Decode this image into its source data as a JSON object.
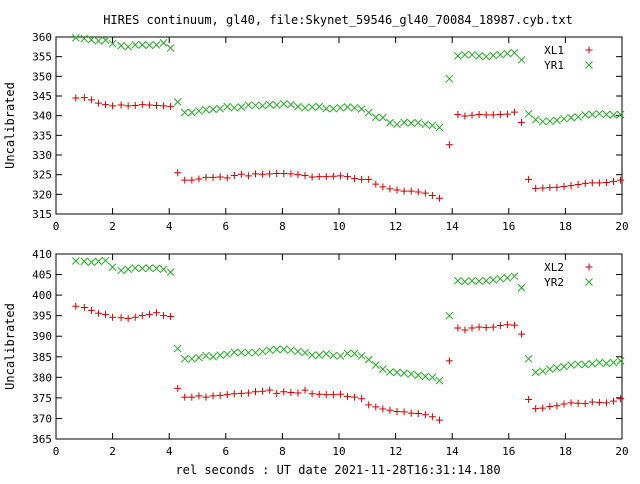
{
  "title": "HIRES continuum, gl40, file:Skynet_59546_gl40_70084_18987.cyb.txt",
  "xlabel": "rel seconds : UT date 2021-11-28T16:31:14.180",
  "colors": {
    "series_a": "#cc0000",
    "series_b": "#22aa22",
    "axis": "#000000",
    "background": "#ffffff"
  },
  "chart_data": [
    {
      "type": "scatter",
      "ylabel": "Uncalibrated",
      "xlim": [
        0,
        20
      ],
      "ylim": [
        315,
        360
      ],
      "xticks": [
        0,
        2,
        4,
        6,
        8,
        10,
        12,
        14,
        16,
        18,
        20
      ],
      "yticks": [
        315,
        320,
        325,
        330,
        335,
        340,
        345,
        350,
        355,
        360
      ],
      "grid": false,
      "legend_position": "top-right",
      "series": [
        {
          "name": "XL1",
          "marker": "plus",
          "x": [
            0.7,
            1.0,
            1.25,
            1.5,
            1.75,
            2.0,
            2.3,
            2.55,
            2.8,
            3.05,
            3.3,
            3.55,
            3.8,
            4.05,
            4.3,
            4.55,
            4.8,
            5.05,
            5.3,
            5.55,
            5.8,
            6.05,
            6.3,
            6.55,
            6.8,
            7.05,
            7.3,
            7.55,
            7.8,
            8.05,
            8.3,
            8.55,
            8.8,
            9.05,
            9.3,
            9.55,
            9.8,
            10.05,
            10.3,
            10.55,
            10.8,
            11.05,
            11.3,
            11.55,
            11.8,
            12.05,
            12.3,
            12.55,
            12.8,
            13.05,
            13.3,
            13.55,
            13.9,
            14.2,
            14.45,
            14.7,
            14.95,
            15.2,
            15.45,
            15.7,
            15.95,
            16.2,
            16.45,
            16.7,
            16.95,
            17.2,
            17.45,
            17.7,
            17.95,
            18.2,
            18.45,
            18.7,
            18.95,
            19.2,
            19.45,
            19.7,
            19.95
          ],
          "y": [
            344.5,
            344.6,
            344.0,
            343.2,
            342.8,
            342.5,
            342.7,
            342.5,
            342.6,
            342.8,
            342.7,
            342.6,
            342.5,
            342.3,
            325.5,
            323.6,
            323.6,
            323.9,
            324.3,
            324.3,
            324.4,
            324.2,
            324.8,
            325.1,
            324.7,
            325.2,
            325.1,
            325.2,
            325.3,
            325.3,
            325.2,
            325.0,
            324.8,
            324.4,
            324.5,
            324.5,
            324.6,
            324.7,
            324.5,
            324.0,
            323.8,
            323.8,
            322.6,
            321.9,
            321.4,
            321.1,
            320.8,
            320.8,
            320.6,
            320.3,
            319.7,
            319.0,
            332.6,
            340.3,
            339.9,
            340.1,
            340.3,
            340.2,
            340.2,
            340.3,
            340.4,
            340.9,
            338.3,
            323.8,
            321.5,
            321.6,
            321.7,
            321.8,
            322.0,
            322.2,
            322.5,
            322.8,
            322.9,
            322.9,
            323.0,
            323.3,
            323.6
          ]
        },
        {
          "name": "YR1",
          "marker": "x",
          "x": [
            0.7,
            1.0,
            1.25,
            1.5,
            1.75,
            2.0,
            2.3,
            2.55,
            2.8,
            3.05,
            3.3,
            3.55,
            3.8,
            4.05,
            4.3,
            4.55,
            4.8,
            5.05,
            5.3,
            5.55,
            5.8,
            6.05,
            6.3,
            6.55,
            6.8,
            7.05,
            7.3,
            7.55,
            7.8,
            8.05,
            8.3,
            8.55,
            8.8,
            9.05,
            9.3,
            9.55,
            9.8,
            10.05,
            10.3,
            10.55,
            10.8,
            11.05,
            11.3,
            11.55,
            11.8,
            12.05,
            12.3,
            12.55,
            12.8,
            13.05,
            13.3,
            13.55,
            13.9,
            14.2,
            14.45,
            14.7,
            14.95,
            15.2,
            15.45,
            15.7,
            15.95,
            16.2,
            16.45,
            16.7,
            16.95,
            17.2,
            17.45,
            17.7,
            17.95,
            18.2,
            18.45,
            18.7,
            18.95,
            19.2,
            19.45,
            19.7,
            19.95
          ],
          "y": [
            359.8,
            359.6,
            359.3,
            359.0,
            359.2,
            358.3,
            357.8,
            357.5,
            358.0,
            358.0,
            357.9,
            358.0,
            358.5,
            357.2,
            343.5,
            340.8,
            340.8,
            341.2,
            341.5,
            341.6,
            341.8,
            342.3,
            342.0,
            342.2,
            342.7,
            342.6,
            342.5,
            342.8,
            342.7,
            343.0,
            342.8,
            342.3,
            342.0,
            342.2,
            342.3,
            341.8,
            341.8,
            342.0,
            342.2,
            342.0,
            341.7,
            340.8,
            339.6,
            339.5,
            338.2,
            337.8,
            338.3,
            338.1,
            338.2,
            337.8,
            337.5,
            337.0,
            349.4,
            355.2,
            355.5,
            355.5,
            355.2,
            355.0,
            355.3,
            355.5,
            355.8,
            356.0,
            354.2,
            340.5,
            339.0,
            338.5,
            338.6,
            338.8,
            339.2,
            339.5,
            339.7,
            340.2,
            340.3,
            340.5,
            340.3,
            340.2,
            340.3
          ]
        }
      ]
    },
    {
      "type": "scatter",
      "ylabel": "Uncalibrated",
      "xlim": [
        0,
        20
      ],
      "ylim": [
        365,
        410
      ],
      "xticks": [
        0,
        2,
        4,
        6,
        8,
        10,
        12,
        14,
        16,
        18,
        20
      ],
      "yticks": [
        365,
        370,
        375,
        380,
        385,
        390,
        395,
        400,
        405,
        410
      ],
      "grid": false,
      "legend_position": "top-right",
      "series": [
        {
          "name": "XL2",
          "marker": "plus",
          "x": [
            0.7,
            1.0,
            1.25,
            1.5,
            1.75,
            2.0,
            2.3,
            2.55,
            2.8,
            3.05,
            3.3,
            3.55,
            3.8,
            4.05,
            4.3,
            4.55,
            4.8,
            5.05,
            5.3,
            5.55,
            5.8,
            6.05,
            6.3,
            6.55,
            6.8,
            7.05,
            7.3,
            7.55,
            7.8,
            8.05,
            8.3,
            8.55,
            8.8,
            9.05,
            9.3,
            9.55,
            9.8,
            10.05,
            10.3,
            10.55,
            10.8,
            11.05,
            11.3,
            11.55,
            11.8,
            12.05,
            12.3,
            12.55,
            12.8,
            13.05,
            13.3,
            13.55,
            13.9,
            14.2,
            14.45,
            14.7,
            14.95,
            15.2,
            15.45,
            15.7,
            15.95,
            16.2,
            16.45,
            16.7,
            16.95,
            17.2,
            17.45,
            17.7,
            17.95,
            18.2,
            18.45,
            18.7,
            18.95,
            19.2,
            19.45,
            19.7,
            19.95
          ],
          "y": [
            397.3,
            397.0,
            396.3,
            395.6,
            395.3,
            394.6,
            394.5,
            394.3,
            394.6,
            395.0,
            395.3,
            395.7,
            395.0,
            394.8,
            377.3,
            375.2,
            375.2,
            375.5,
            375.2,
            375.5,
            375.6,
            375.8,
            376.0,
            376.1,
            376.2,
            376.5,
            376.6,
            376.9,
            376.1,
            376.5,
            376.3,
            376.2,
            376.9,
            376.0,
            375.9,
            375.8,
            375.8,
            375.9,
            375.3,
            375.2,
            374.8,
            373.3,
            372.8,
            372.3,
            372.0,
            371.7,
            371.6,
            371.3,
            371.2,
            370.9,
            370.4,
            369.6,
            384.0,
            392.0,
            391.5,
            392.0,
            392.2,
            392.1,
            392.2,
            392.6,
            392.8,
            392.7,
            390.5,
            374.6,
            372.4,
            372.5,
            372.9,
            373.1,
            373.5,
            373.8,
            373.7,
            373.6,
            374.0,
            373.9,
            373.8,
            374.2,
            374.8
          ]
        },
        {
          "name": "YR2",
          "marker": "x",
          "x": [
            0.7,
            1.0,
            1.25,
            1.5,
            1.75,
            2.0,
            2.3,
            2.55,
            2.8,
            3.05,
            3.3,
            3.55,
            3.8,
            4.05,
            4.3,
            4.55,
            4.8,
            5.05,
            5.3,
            5.55,
            5.8,
            6.05,
            6.3,
            6.55,
            6.8,
            7.05,
            7.3,
            7.55,
            7.8,
            8.05,
            8.3,
            8.55,
            8.8,
            9.05,
            9.3,
            9.55,
            9.8,
            10.05,
            10.3,
            10.55,
            10.8,
            11.05,
            11.3,
            11.55,
            11.8,
            12.05,
            12.3,
            12.55,
            12.8,
            13.05,
            13.3,
            13.55,
            13.9,
            14.2,
            14.45,
            14.7,
            14.95,
            15.2,
            15.45,
            15.7,
            15.95,
            16.2,
            16.45,
            16.7,
            16.95,
            17.2,
            17.45,
            17.7,
            17.95,
            18.2,
            18.45,
            18.7,
            18.95,
            19.2,
            19.45,
            19.7,
            19.95
          ],
          "y": [
            408.3,
            408.2,
            408.0,
            408.2,
            408.4,
            406.8,
            406.0,
            406.3,
            406.6,
            406.5,
            406.6,
            406.5,
            406.3,
            405.6,
            387.0,
            384.5,
            384.5,
            384.8,
            385.3,
            385.0,
            385.4,
            385.6,
            386.1,
            386.0,
            386.0,
            386.0,
            386.3,
            386.6,
            386.8,
            386.8,
            386.6,
            386.3,
            386.0,
            385.4,
            385.4,
            385.7,
            385.3,
            385.2,
            385.8,
            385.8,
            385.2,
            384.3,
            383.0,
            382.0,
            381.3,
            381.2,
            381.0,
            380.8,
            380.5,
            380.2,
            380.0,
            379.2,
            395.0,
            403.5,
            403.3,
            403.5,
            403.4,
            403.5,
            403.7,
            404.0,
            404.2,
            404.6,
            401.8,
            384.5,
            381.2,
            381.5,
            382.0,
            382.3,
            382.6,
            383.0,
            383.2,
            383.1,
            383.3,
            383.6,
            383.4,
            383.6,
            384.0
          ]
        }
      ]
    }
  ]
}
